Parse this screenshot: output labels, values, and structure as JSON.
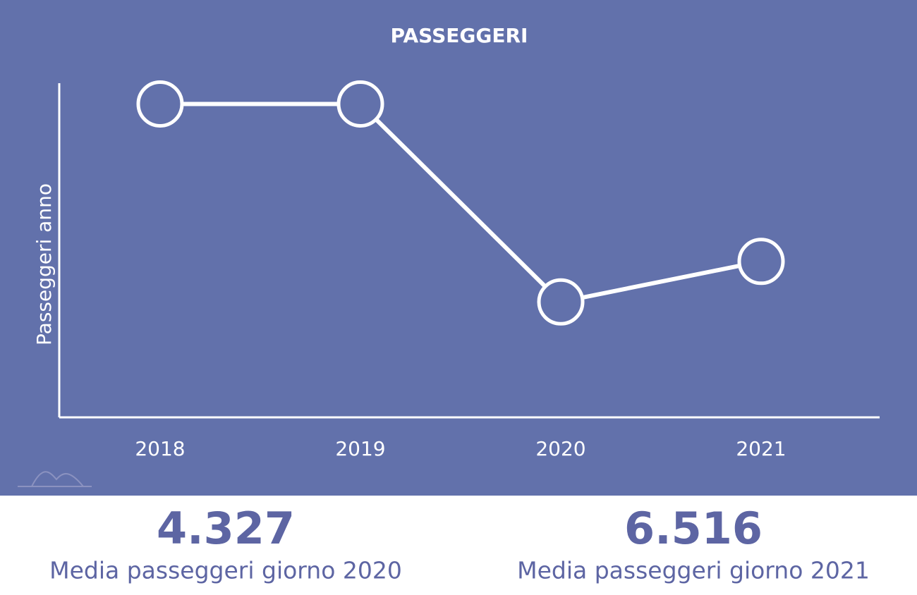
{
  "chart_data": {
    "type": "line",
    "title": "PASSEGGERI",
    "y_label": "Passeggeri anno",
    "categories": [
      "2018",
      "2019",
      "2020",
      "2021"
    ],
    "series": [
      {
        "color": "#ffffff",
        "values": [
          5490000,
          5490000,
          1580000,
          2380000
        ]
      }
    ],
    "ylim": [
      -700000,
      5900000
    ]
  },
  "stats": [
    {
      "value": "4.327",
      "label": "Media passeggeri giorno 2020"
    },
    {
      "value": "6.516",
      "label": "Media passeggeri giorno 2021"
    }
  ]
}
